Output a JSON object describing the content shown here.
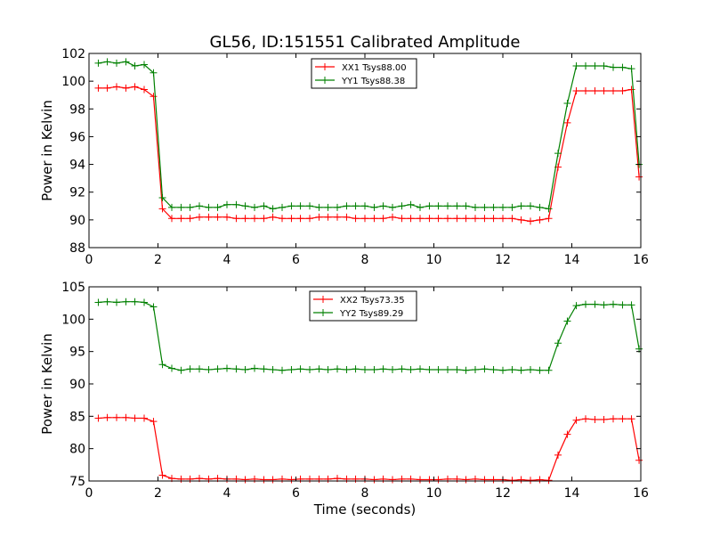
{
  "figure": {
    "title": "GL56, ID:151551 Calibrated Amplitude"
  },
  "chart_data": [
    {
      "type": "line",
      "title": "GL56, ID:151551 Calibrated Amplitude",
      "xlabel": "",
      "ylabel": "Power in Kelvin",
      "xlim": [
        0,
        16
      ],
      "ylim": [
        88,
        102
      ],
      "xticks": [
        0,
        2,
        4,
        6,
        8,
        10,
        12,
        14,
        16
      ],
      "yticks": [
        88,
        90,
        92,
        94,
        96,
        98,
        100,
        102
      ],
      "grid": false,
      "legend_position": "upper-center",
      "x": [
        0.27,
        0.53,
        0.8,
        1.07,
        1.33,
        1.6,
        1.87,
        2.13,
        2.4,
        2.67,
        2.93,
        3.2,
        3.47,
        3.73,
        4.0,
        4.27,
        4.53,
        4.8,
        5.07,
        5.33,
        5.6,
        5.87,
        6.13,
        6.4,
        6.67,
        6.93,
        7.2,
        7.47,
        7.73,
        8.0,
        8.27,
        8.53,
        8.8,
        9.07,
        9.33,
        9.6,
        9.87,
        10.13,
        10.4,
        10.67,
        10.93,
        11.2,
        11.47,
        11.73,
        12.0,
        12.27,
        12.53,
        12.8,
        13.07,
        13.33,
        13.6,
        13.87,
        14.13,
        14.4,
        14.67,
        14.93,
        15.2,
        15.47,
        15.73,
        15.95
      ],
      "series": [
        {
          "name": "XX1 Tsys88.00",
          "color": "#ff0000",
          "values": [
            99.5,
            99.5,
            99.6,
            99.5,
            99.6,
            99.4,
            98.9,
            90.8,
            90.1,
            90.1,
            90.1,
            90.2,
            90.2,
            90.2,
            90.2,
            90.1,
            90.1,
            90.1,
            90.1,
            90.2,
            90.1,
            90.1,
            90.1,
            90.1,
            90.2,
            90.2,
            90.2,
            90.2,
            90.1,
            90.1,
            90.1,
            90.1,
            90.2,
            90.1,
            90.1,
            90.1,
            90.1,
            90.1,
            90.1,
            90.1,
            90.1,
            90.1,
            90.1,
            90.1,
            90.1,
            90.1,
            90.0,
            89.9,
            90.0,
            90.1,
            93.8,
            97.0,
            99.3,
            99.3,
            99.3,
            99.3,
            99.3,
            99.3,
            99.4,
            93.1
          ]
        },
        {
          "name": "YY1 Tsys88.38",
          "color": "#008000",
          "values": [
            101.3,
            101.4,
            101.3,
            101.4,
            101.1,
            101.2,
            100.6,
            91.6,
            90.9,
            90.9,
            90.9,
            91.0,
            90.9,
            90.9,
            91.1,
            91.1,
            91.0,
            90.9,
            91.0,
            90.8,
            90.9,
            91.0,
            91.0,
            91.0,
            90.9,
            90.9,
            90.9,
            91.0,
            91.0,
            91.0,
            90.9,
            91.0,
            90.9,
            91.0,
            91.1,
            90.9,
            91.0,
            91.0,
            91.0,
            91.0,
            91.0,
            90.9,
            90.9,
            90.9,
            90.9,
            90.9,
            91.0,
            91.0,
            90.9,
            90.8,
            94.8,
            98.4,
            101.1,
            101.1,
            101.1,
            101.1,
            101.0,
            101.0,
            100.9,
            94.0
          ]
        }
      ]
    },
    {
      "type": "line",
      "title": "",
      "xlabel": "Time (seconds)",
      "ylabel": "Power in Kelvin",
      "xlim": [
        0,
        16
      ],
      "ylim": [
        75,
        105
      ],
      "xticks": [
        0,
        2,
        4,
        6,
        8,
        10,
        12,
        14,
        16
      ],
      "yticks": [
        75,
        80,
        85,
        90,
        95,
        100,
        105
      ],
      "grid": false,
      "legend_position": "upper-center",
      "x": [
        0.27,
        0.53,
        0.8,
        1.07,
        1.33,
        1.6,
        1.87,
        2.13,
        2.4,
        2.67,
        2.93,
        3.2,
        3.47,
        3.73,
        4.0,
        4.27,
        4.53,
        4.8,
        5.07,
        5.33,
        5.6,
        5.87,
        6.13,
        6.4,
        6.67,
        6.93,
        7.2,
        7.47,
        7.73,
        8.0,
        8.27,
        8.53,
        8.8,
        9.07,
        9.33,
        9.6,
        9.87,
        10.13,
        10.4,
        10.67,
        10.93,
        11.2,
        11.47,
        11.73,
        12.0,
        12.27,
        12.53,
        12.8,
        13.07,
        13.33,
        13.6,
        13.87,
        14.13,
        14.4,
        14.67,
        14.93,
        15.2,
        15.47,
        15.73,
        15.95
      ],
      "series": [
        {
          "name": "XX2 Tsys73.35",
          "color": "#ff0000",
          "values": [
            84.7,
            84.8,
            84.8,
            84.8,
            84.7,
            84.7,
            84.2,
            75.9,
            75.4,
            75.3,
            75.3,
            75.4,
            75.3,
            75.4,
            75.3,
            75.3,
            75.2,
            75.3,
            75.2,
            75.2,
            75.3,
            75.2,
            75.3,
            75.3,
            75.3,
            75.3,
            75.4,
            75.3,
            75.3,
            75.3,
            75.2,
            75.3,
            75.2,
            75.3,
            75.3,
            75.2,
            75.2,
            75.2,
            75.3,
            75.3,
            75.2,
            75.3,
            75.2,
            75.2,
            75.2,
            75.1,
            75.2,
            75.1,
            75.2,
            75.1,
            79.0,
            82.2,
            84.4,
            84.6,
            84.5,
            84.5,
            84.6,
            84.6,
            84.6,
            78.2
          ]
        },
        {
          "name": "YY2 Tsys89.29",
          "color": "#008000",
          "values": [
            102.6,
            102.7,
            102.6,
            102.7,
            102.7,
            102.6,
            101.9,
            93.0,
            92.4,
            92.1,
            92.3,
            92.3,
            92.2,
            92.3,
            92.4,
            92.3,
            92.2,
            92.4,
            92.3,
            92.2,
            92.1,
            92.2,
            92.3,
            92.2,
            92.3,
            92.2,
            92.3,
            92.2,
            92.3,
            92.2,
            92.2,
            92.3,
            92.2,
            92.3,
            92.2,
            92.3,
            92.2,
            92.2,
            92.2,
            92.2,
            92.1,
            92.2,
            92.3,
            92.2,
            92.1,
            92.2,
            92.1,
            92.2,
            92.1,
            92.1,
            96.3,
            99.7,
            102.1,
            102.3,
            102.3,
            102.2,
            102.3,
            102.2,
            102.2,
            95.4
          ]
        }
      ]
    }
  ]
}
